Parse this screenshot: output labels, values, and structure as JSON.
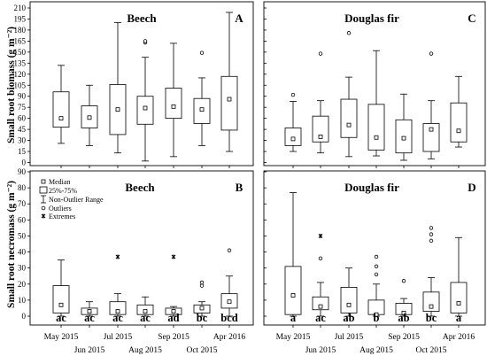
{
  "chart_data": {
    "type": "boxplot",
    "y_axis_top": {
      "label": "Small root biomass (g m⁻²)",
      "ticks": [
        "0",
        "15",
        "30",
        "45",
        "60",
        "75",
        "90",
        "105",
        "120",
        "135",
        "150",
        "165",
        "180",
        "195",
        "210"
      ],
      "ylim": [
        0,
        210
      ]
    },
    "y_axis_bottom": {
      "label": "Small root necromass (g m⁻²)",
      "ticks": [
        "0",
        "10",
        "20",
        "30",
        "40",
        "50",
        "60",
        "70",
        "80",
        "90"
      ],
      "ylim": [
        0,
        90
      ]
    },
    "x_tick_labels_upper": [
      "May 2015",
      "Jul 2015",
      "Sep 2015",
      "Apr 2016"
    ],
    "x_tick_labels_lower": [
      "Jun 2015",
      "Aug 2015",
      "Oct 2015"
    ],
    "legend": {
      "median": "Median",
      "box": "25%-75%",
      "range": "Non-Outlier Range",
      "outliers": "Outliers",
      "extremes": "Extremes"
    },
    "panels": [
      {
        "id": "A",
        "title": "Beech",
        "letter": "A",
        "boxes": [
          {
            "low": 26,
            "q1": 48,
            "median": 60,
            "q3": 96,
            "high": 132,
            "outliers": []
          },
          {
            "low": 23,
            "q1": 47,
            "median": 61,
            "q3": 77,
            "high": 105,
            "outliers": []
          },
          {
            "low": 13,
            "q1": 38,
            "median": 72,
            "q3": 106,
            "high": 190,
            "outliers": []
          },
          {
            "low": 2,
            "q1": 52,
            "median": 74,
            "q3": 90,
            "high": 143,
            "outliers": [
              163,
              165
            ]
          },
          {
            "low": 8,
            "q1": 60,
            "median": 76,
            "q3": 101,
            "high": 162,
            "outliers": []
          },
          {
            "low": 23,
            "q1": 53,
            "median": 72,
            "q3": 87,
            "high": 115,
            "outliers": [
              149
            ]
          },
          {
            "low": 15,
            "q1": 44,
            "median": 86,
            "q3": 117,
            "high": 204,
            "outliers": []
          }
        ]
      },
      {
        "id": "C",
        "title": "Douglas fir",
        "letter": "C",
        "boxes": [
          {
            "low": 15,
            "q1": 23,
            "median": 32,
            "q3": 47,
            "high": 83,
            "outliers": [
              92
            ]
          },
          {
            "low": 13,
            "q1": 28,
            "median": 35,
            "q3": 63,
            "high": 84,
            "outliers": [
              148
            ]
          },
          {
            "low": 8,
            "q1": 34,
            "median": 51,
            "q3": 86,
            "high": 116,
            "outliers": [
              176
            ]
          },
          {
            "low": 9,
            "q1": 17,
            "median": 34,
            "q3": 79,
            "high": 152,
            "outliers": []
          },
          {
            "low": 3,
            "q1": 13,
            "median": 33,
            "q3": 58,
            "high": 93,
            "outliers": []
          },
          {
            "low": 5,
            "q1": 15,
            "median": 45,
            "q3": 53,
            "high": 84,
            "outliers": [
              148
            ]
          },
          {
            "low": 21,
            "q1": 28,
            "median": 43,
            "q3": 81,
            "high": 117,
            "outliers": []
          }
        ]
      },
      {
        "id": "B",
        "title": "Beech",
        "letter": "B",
        "boxes": [
          {
            "low": 0,
            "q1": 2,
            "median": 7,
            "q3": 19,
            "high": 35,
            "outliers": [],
            "extremes": [],
            "group": "ac"
          },
          {
            "low": 0,
            "q1": 1,
            "median": 3,
            "q3": 5,
            "high": 9,
            "outliers": [],
            "extremes": [],
            "group": "ac"
          },
          {
            "low": 0,
            "q1": 1,
            "median": 3,
            "q3": 9,
            "high": 14,
            "outliers": [],
            "extremes": [
              37
            ],
            "group": "ac"
          },
          {
            "low": 0,
            "q1": 1,
            "median": 3,
            "q3": 7,
            "high": 12,
            "outliers": [],
            "extremes": [],
            "group": "ac"
          },
          {
            "low": 0,
            "q1": 1,
            "median": 3,
            "q3": 5,
            "high": 6,
            "outliers": [],
            "extremes": [
              37
            ],
            "group": "ad"
          },
          {
            "low": 0,
            "q1": 2,
            "median": 5,
            "q3": 7,
            "high": 9,
            "outliers": [
              19,
              21
            ],
            "extremes": [],
            "group": "bc"
          },
          {
            "low": 0,
            "q1": 5,
            "median": 9,
            "q3": 14,
            "high": 25,
            "outliers": [
              41
            ],
            "extremes": [],
            "group": "bcd"
          }
        ]
      },
      {
        "id": "D",
        "title": "Douglas fir",
        "letter": "D",
        "boxes": [
          {
            "low": 0,
            "q1": 1,
            "median": 13,
            "q3": 31,
            "high": 77,
            "outliers": [],
            "extremes": [],
            "group": "a"
          },
          {
            "low": 0,
            "q1": 4,
            "median": 6,
            "q3": 12,
            "high": 21,
            "outliers": [
              36
            ],
            "extremes": [
              50
            ],
            "group": "ac"
          },
          {
            "low": 0,
            "q1": 2,
            "median": 7,
            "q3": 18,
            "high": 30,
            "outliers": [],
            "extremes": [],
            "group": "ab"
          },
          {
            "low": 0,
            "q1": 1,
            "median": 1,
            "q3": 10,
            "high": 20,
            "outliers": [
              26,
              31,
              37
            ],
            "extremes": [],
            "group": "b"
          },
          {
            "low": 0,
            "q1": 1,
            "median": 2,
            "q3": 8,
            "high": 11,
            "outliers": [
              22
            ],
            "extremes": [],
            "group": "ab"
          },
          {
            "low": 0,
            "q1": 3,
            "median": 6,
            "q3": 15,
            "high": 24,
            "outliers": [
              47,
              51,
              55
            ],
            "extremes": [],
            "group": "bc"
          },
          {
            "low": 0,
            "q1": 2,
            "median": 8,
            "q3": 21,
            "high": 49,
            "outliers": [],
            "extremes": [],
            "group": "a"
          }
        ]
      }
    ]
  }
}
